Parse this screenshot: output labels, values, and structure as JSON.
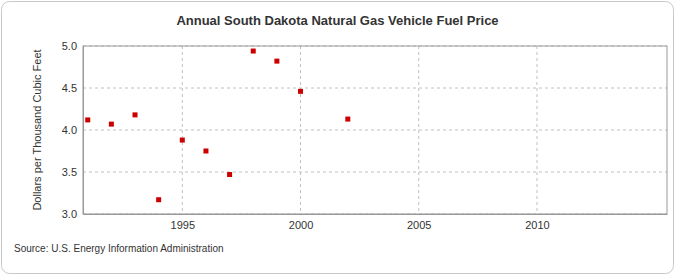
{
  "chart_data": {
    "type": "scatter",
    "title": "Annual South Dakota Natural Gas Vehicle Fuel Price",
    "y_label": "Dollars per Thousand Cubic Feet",
    "source": "Source: U.S. Energy Information Administration",
    "x": [
      1991,
      1992,
      1993,
      1994,
      1995,
      1996,
      1997,
      1998,
      1999,
      2000,
      2002
    ],
    "values": [
      4.12,
      4.07,
      4.18,
      3.17,
      3.88,
      3.75,
      3.47,
      4.94,
      4.82,
      4.46,
      4.13
    ],
    "color": "#cc0000",
    "marker": "square",
    "xlim": [
      1990.8,
      2015.5
    ],
    "xticks": [
      1995,
      2000,
      2005,
      2010
    ],
    "ylim": [
      3.0,
      5.0
    ],
    "yticks": [
      {
        "value": 3.0,
        "label": "3.0"
      },
      {
        "value": 3.5,
        "label": "3.5"
      },
      {
        "value": 4.0,
        "label": "4.0"
      },
      {
        "value": 4.5,
        "label": "4.5"
      },
      {
        "value": 5.0,
        "label": "5.0"
      }
    ],
    "grid": true
  }
}
